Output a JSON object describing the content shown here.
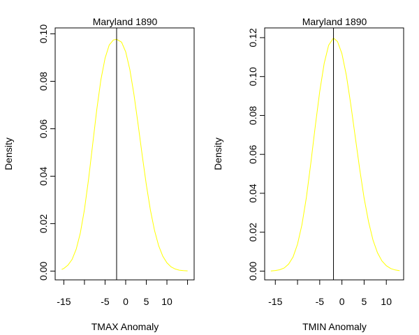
{
  "chart_data": [
    {
      "type": "line",
      "title": "Maryland 1890",
      "xlabel": "TMAX Anomaly",
      "ylabel": "Density",
      "xlim": [
        -17.1,
        16.6
      ],
      "ylim": [
        -0.0037,
        0.1025
      ],
      "xticks": [
        -15,
        -10,
        -5,
        0,
        5,
        10,
        15
      ],
      "xtick_labels": [
        "-15",
        "",
        "-5",
        "0",
        "5",
        "10",
        ""
      ],
      "yticks": [
        0.0,
        0.02,
        0.04,
        0.06,
        0.08,
        0.1
      ],
      "ytick_labels": [
        "0.00",
        "0.02",
        "0.04",
        "0.06",
        "0.08",
        "0.10"
      ],
      "grid": false,
      "series": [
        {
          "color": "#ffff00",
          "x": [
            -15.5,
            -15,
            -14,
            -13,
            -12,
            -11,
            -10,
            -9,
            -8,
            -7,
            -6,
            -5,
            -4,
            -3,
            -2.2,
            -1,
            0,
            1,
            2,
            3,
            4,
            5,
            6,
            7,
            8,
            9,
            10,
            11,
            12,
            13,
            14,
            15
          ],
          "values": [
            0.0007,
            0.0011,
            0.0025,
            0.0049,
            0.0092,
            0.016,
            0.0259,
            0.0387,
            0.0534,
            0.0681,
            0.0807,
            0.0898,
            0.0953,
            0.0974,
            0.0977,
            0.0965,
            0.0924,
            0.085,
            0.0745,
            0.062,
            0.0489,
            0.0365,
            0.0257,
            0.0171,
            0.0107,
            0.0063,
            0.0035,
            0.0018,
            0.0009,
            0.0004,
            0.0002,
            0.0001
          ]
        }
      ],
      "vline": {
        "x": -2.2,
        "color": "#000000"
      }
    },
    {
      "type": "line",
      "title": "Maryland 1890",
      "xlabel": "TMIN Anomaly",
      "ylabel": "Density",
      "xlim": [
        -17.4,
        13.9
      ],
      "ylim": [
        -0.0045,
        0.125
      ],
      "xticks": [
        -15,
        -10,
        -5,
        0,
        5,
        10
      ],
      "xtick_labels": [
        "-15",
        "",
        "-5",
        "0",
        "5",
        "10"
      ],
      "yticks": [
        0.0,
        0.02,
        0.04,
        0.06,
        0.08,
        0.1,
        0.12
      ],
      "ytick_labels": [
        "0.00",
        "0.02",
        "0.04",
        "0.06",
        "0.08",
        "0.10",
        "0.12"
      ],
      "grid": false,
      "series": [
        {
          "color": "#ffff00",
          "x": [
            -16,
            -15,
            -14,
            -13,
            -12,
            -11,
            -10,
            -9,
            -8,
            -7,
            -6,
            -5,
            -4,
            -3,
            -1.9,
            -1,
            0,
            1,
            2,
            3,
            4,
            5,
            6,
            7,
            8,
            9,
            10,
            11,
            12,
            13
          ],
          "values": [
            0.0001,
            0.0003,
            0.0007,
            0.0016,
            0.0036,
            0.0073,
            0.0138,
            0.0239,
            0.038,
            0.0555,
            0.0746,
            0.0922,
            0.1067,
            0.1161,
            0.1198,
            0.118,
            0.1118,
            0.1006,
            0.0857,
            0.069,
            0.0524,
            0.0375,
            0.0253,
            0.016,
            0.0095,
            0.0053,
            0.0028,
            0.0013,
            0.0006,
            0.0002
          ]
        }
      ],
      "vline": {
        "x": -1.9,
        "color": "#000000"
      }
    }
  ]
}
